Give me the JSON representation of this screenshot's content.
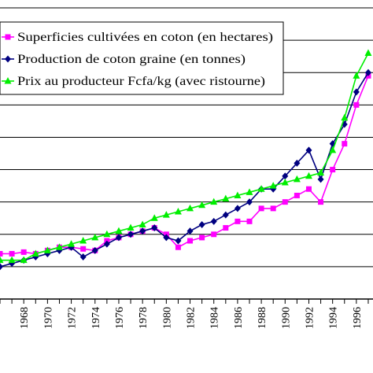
{
  "chart_data": {
    "type": "line",
    "title": "",
    "xlabel": "",
    "ylabel": "",
    "x_tick_labels": [
      "1968",
      "1970",
      "1972",
      "1974",
      "1976",
      "1978",
      "1980",
      "1982",
      "1984",
      "1986",
      "1988",
      "1990",
      "1992",
      "1994",
      "1996"
    ],
    "x": [
      1966,
      1967,
      1968,
      1969,
      1970,
      1971,
      1972,
      1973,
      1974,
      1975,
      1976,
      1977,
      1978,
      1979,
      1980,
      1981,
      1982,
      1983,
      1984,
      1985,
      1986,
      1987,
      1988,
      1989,
      1990,
      1991,
      1992,
      1993,
      1994,
      1995,
      1996,
      1997
    ],
    "xlim": [
      1966,
      1997.4
    ],
    "ylim": [
      0,
      9
    ],
    "grid": "horizontal",
    "legend_position": "top-left",
    "series": [
      {
        "name": "Superficies cultivées en coton (en hectares)",
        "color": "#ff00ff",
        "marker": "square",
        "values": [
          1.4,
          1.4,
          1.45,
          1.4,
          1.5,
          1.6,
          1.6,
          1.55,
          1.5,
          1.8,
          1.9,
          2.0,
          2.1,
          2.2,
          2.0,
          1.6,
          1.8,
          1.9,
          2.0,
          2.2,
          2.4,
          2.4,
          2.8,
          2.8,
          3.0,
          3.2,
          3.4,
          3.0,
          4.0,
          4.8,
          6.0,
          6.9
        ]
      },
      {
        "name": "Production de coton graine (en tonnes)",
        "color": "#000080",
        "marker": "diamond",
        "values": [
          1.0,
          1.1,
          1.2,
          1.3,
          1.4,
          1.5,
          1.6,
          1.3,
          1.5,
          1.7,
          1.9,
          2.0,
          2.1,
          2.2,
          1.9,
          1.8,
          2.1,
          2.3,
          2.4,
          2.6,
          2.8,
          3.0,
          3.4,
          3.4,
          3.8,
          4.2,
          4.6,
          3.7,
          4.8,
          5.4,
          6.4,
          7.0
        ]
      },
      {
        "name": "Prix au producteur Fcfa/kg (avec ristourne)",
        "color": "#00ee00",
        "marker": "triangle",
        "values": [
          1.2,
          1.2,
          1.2,
          1.4,
          1.5,
          1.6,
          1.7,
          1.8,
          1.9,
          2.0,
          2.1,
          2.2,
          2.3,
          2.5,
          2.6,
          2.7,
          2.8,
          2.9,
          3.0,
          3.1,
          3.2,
          3.3,
          3.4,
          3.5,
          3.6,
          3.7,
          3.8,
          3.9,
          4.6,
          5.6,
          6.9,
          7.6
        ]
      }
    ]
  }
}
